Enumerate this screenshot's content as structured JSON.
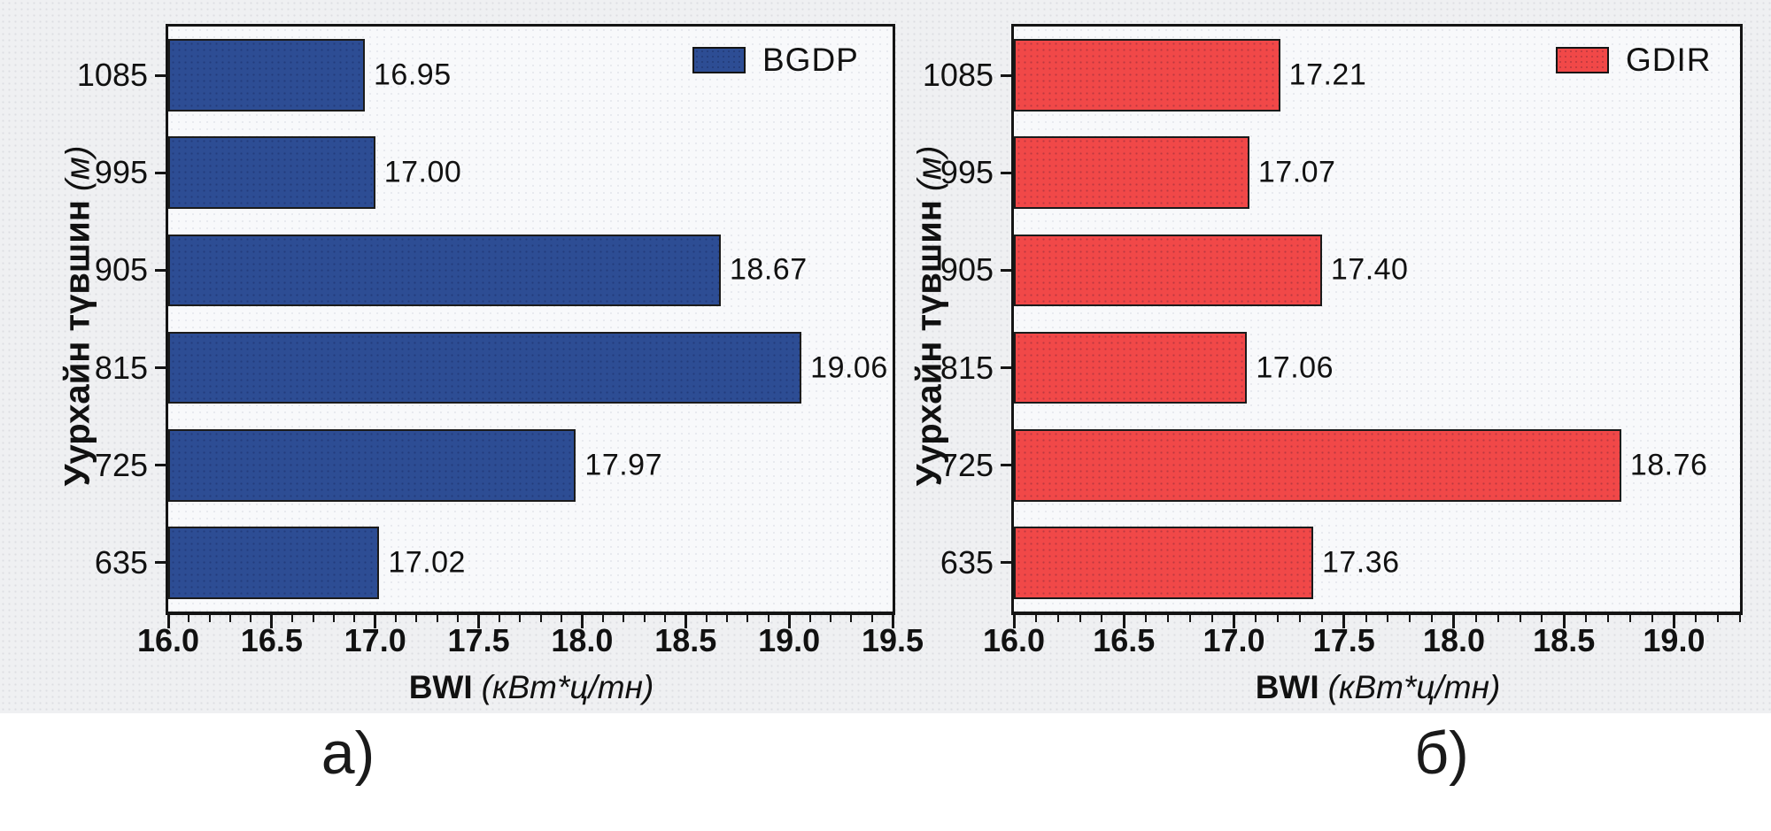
{
  "figure": {
    "background_color": "#eff0f2",
    "panel_labels": [
      "а)",
      "б)"
    ]
  },
  "chart_data": [
    {
      "type": "bar",
      "orientation": "horizontal",
      "series_name": "BGDP",
      "bar_color": "#2d4d94",
      "categories": [
        "1085",
        "995",
        "905",
        "815",
        "725",
        "635"
      ],
      "values": [
        16.95,
        17.0,
        18.67,
        19.06,
        17.97,
        17.02
      ],
      "xlabel_main": "BWI",
      "xlabel_unit": "(кВт*ц/тн)",
      "ylabel_main": "Уурхайн түвшин",
      "ylabel_unit": "(м)",
      "xlim": [
        16.0,
        19.5
      ],
      "xtick_labels": [
        "16.0",
        "16.5",
        "17.0",
        "17.5",
        "18.0",
        "18.5",
        "19.0",
        "19.5"
      ],
      "xtick_step": 0.5,
      "minor_tick_step": 0.1,
      "grid": false,
      "legend_position": "top-right",
      "value_label_decimals": 2,
      "panel_label": "а)"
    },
    {
      "type": "bar",
      "orientation": "horizontal",
      "series_name": "GDIR",
      "bar_color": "#f14848",
      "categories": [
        "1085",
        "995",
        "905",
        "815",
        "725",
        "635"
      ],
      "values": [
        17.21,
        17.07,
        17.4,
        17.06,
        18.76,
        17.36
      ],
      "xlabel_main": "BWI",
      "xlabel_unit": "(кВт*ц/тн)",
      "ylabel_main": "Уурхайн түвшин",
      "ylabel_unit": "(м)",
      "xlim": [
        16.0,
        19.3
      ],
      "xtick_labels": [
        "16.0",
        "16.5",
        "17.0",
        "17.5",
        "18.0",
        "18.5",
        "19.0"
      ],
      "xtick_step": 0.5,
      "minor_tick_step": 0.1,
      "grid": false,
      "legend_position": "top-right",
      "value_label_decimals": 2,
      "panel_label": "б)"
    }
  ]
}
